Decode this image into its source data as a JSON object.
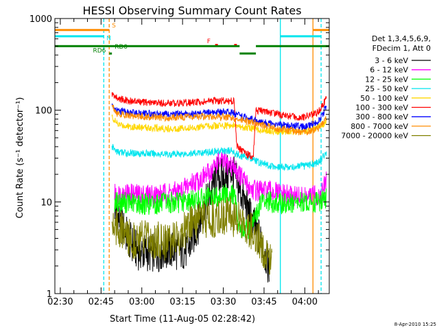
{
  "chart_data": {
    "type": "line",
    "title": "HESSI Observing Summary Count Rates",
    "xlabel": "Start Time (11-Aug-05 02:28:42)",
    "ylabel": "Count Rate (s⁻¹ detector⁻¹)",
    "y_scale": "log",
    "ylim": [
      1,
      1000
    ],
    "xlim": [
      "02:28",
      "04:09"
    ],
    "x_ticks": [
      "02:30",
      "02:45",
      "03:00",
      "03:15",
      "03:30",
      "03:45",
      "04:00"
    ],
    "y_ticks": [
      "1",
      "10",
      "100",
      "1000"
    ],
    "grid": false,
    "legend_position": "right",
    "legend_header": [
      "Det 1,3,4,5,6,9,",
      "FDecim 1, Att 0"
    ],
    "timestamp": "8-Apr-2010 15:25",
    "annotations": [
      {
        "label": "S",
        "color": "#ff8c00"
      },
      {
        "label": "N",
        "color": "#00e5ee"
      },
      {
        "label": "F",
        "color": "#ff0000"
      },
      {
        "label": "RD6",
        "color": "#008000"
      },
      {
        "label": "RD0",
        "color": "#008000"
      }
    ],
    "vertical_markers": [
      {
        "time": "02:46",
        "color": "#00e5ee",
        "style": "dashed"
      },
      {
        "time": "02:48",
        "color": "#ff8c00",
        "style": "dashed"
      },
      {
        "time": "03:51",
        "color": "#00e5ee",
        "style": "solid"
      },
      {
        "time": "04:03",
        "color": "#ff8c00",
        "style": "solid"
      },
      {
        "time": "04:06",
        "color": "#00e5ee",
        "style": "dashed"
      }
    ],
    "flag_bars": [
      {
        "name": "SAA",
        "color": "#ff8c00",
        "y": 750,
        "segments": [
          [
            "02:28",
            "02:48"
          ],
          [
            "04:03",
            "04:09"
          ]
        ]
      },
      {
        "name": "Night",
        "color": "#00e5ee",
        "y": 640,
        "segments": [
          [
            "02:28",
            "02:46"
          ],
          [
            "03:51",
            "04:06"
          ]
        ]
      },
      {
        "name": "Flare",
        "color": "#ff0000",
        "y": 515,
        "segments": [
          [
            "03:27",
            "03:28"
          ],
          [
            "03:34",
            "03:35"
          ]
        ]
      },
      {
        "name": "Decimation",
        "color": "#008000",
        "y": 500,
        "segments": [
          [
            "02:28",
            "03:36"
          ],
          [
            "03:42",
            "04:09"
          ]
        ]
      },
      {
        "name": "Decimation-low",
        "color": "#008000",
        "y": 415,
        "segments": [
          [
            "02:48",
            "02:49"
          ],
          [
            "03:36",
            "03:42"
          ]
        ]
      }
    ],
    "series": [
      {
        "name": "3 - 6 keV",
        "color": "#000000",
        "x": [
          "02:50",
          "02:52",
          "02:55",
          "02:58",
          "03:01",
          "03:05",
          "03:10",
          "03:14",
          "03:17",
          "03:20",
          "03:24",
          "03:28",
          "03:30",
          "03:33",
          "03:36",
          "03:39",
          "03:42",
          "03:45",
          "03:47"
        ],
        "y": [
          9,
          6,
          4,
          3,
          2.8,
          2.8,
          3,
          2.9,
          3,
          5,
          10,
          20,
          18,
          22,
          14,
          8,
          5,
          3,
          1.8
        ]
      },
      {
        "name": "6 - 12 keV",
        "color": "#ff00ff",
        "x": [
          "02:50",
          "02:54",
          "02:58",
          "03:02",
          "03:06",
          "03:10",
          "03:14",
          "03:18",
          "03:22",
          "03:26",
          "03:28",
          "03:31",
          "03:34",
          "03:37",
          "03:40",
          "03:44",
          "03:48",
          "03:52",
          "03:56",
          "04:00",
          "04:03",
          "04:06",
          "04:08"
        ],
        "y": [
          12,
          12.5,
          12,
          12,
          12,
          12.5,
          13,
          16,
          18,
          22,
          28,
          26,
          24,
          18,
          14,
          13,
          13,
          12,
          11.5,
          11,
          11.5,
          12,
          17
        ]
      },
      {
        "name": "12 - 25 keV",
        "color": "#00ff00",
        "x": [
          "02:50",
          "02:55",
          "03:00",
          "03:05",
          "03:10",
          "03:15",
          "03:20",
          "03:25",
          "03:30",
          "03:34",
          "03:36",
          "03:40",
          "03:42",
          "03:44",
          "03:47",
          "03:50",
          "03:55",
          "04:00",
          "04:05",
          "04:08"
        ],
        "y": [
          10,
          9.8,
          9.5,
          9.5,
          9.8,
          10,
          10.5,
          11,
          12,
          12,
          5,
          5,
          7,
          10,
          10,
          9.5,
          9.5,
          9.8,
          10,
          11
        ]
      },
      {
        "name": "25 - 50 keV",
        "color": "#00e5ee",
        "x": [
          "02:49",
          "02:51",
          "02:55",
          "03:00",
          "03:05",
          "03:10",
          "03:15",
          "03:20",
          "03:25",
          "03:30",
          "03:33",
          "03:36",
          "03:40",
          "03:43",
          "03:47",
          "03:50",
          "03:55",
          "04:00",
          "04:05",
          "04:08"
        ],
        "y": [
          40,
          35,
          34,
          34,
          33.5,
          33,
          33.5,
          34,
          35,
          36,
          36,
          32,
          30,
          27,
          25,
          24,
          24,
          24.5,
          27,
          35
        ]
      },
      {
        "name": "50 - 100 keV",
        "color": "#ffd700",
        "x": [
          "02:49",
          "02:51",
          "02:55",
          "03:00",
          "03:05",
          "03:10",
          "03:15",
          "03:20",
          "03:25",
          "03:30",
          "03:33",
          "03:36",
          "03:40",
          "03:43",
          "03:47",
          "03:50",
          "03:55",
          "04:00",
          "04:05",
          "04:08"
        ],
        "y": [
          85,
          70,
          67,
          65,
          64,
          63,
          64,
          65,
          67,
          68,
          68,
          66,
          64,
          62,
          60,
          58,
          58,
          60,
          65,
          75
        ]
      },
      {
        "name": "100 - 300 keV",
        "color": "#ff0000",
        "x": [
          "02:49",
          "02:51",
          "02:55",
          "03:00",
          "03:05",
          "03:10",
          "03:15",
          "03:20",
          "03:25",
          "03:30",
          "03:34",
          "03:35",
          "03:38",
          "03:41",
          "03:42",
          "03:45",
          "03:48",
          "03:51",
          "03:55",
          "04:00",
          "04:05",
          "04:08"
        ],
        "y": [
          150,
          135,
          127,
          122,
          120,
          119,
          120,
          122,
          125,
          127,
          126,
          40,
          34,
          30,
          100,
          97,
          93,
          90,
          85,
          84,
          95,
          135
        ]
      },
      {
        "name": "300 - 800 keV",
        "color": "#0000ff",
        "x": [
          "02:49",
          "02:51",
          "02:55",
          "03:00",
          "03:05",
          "03:10",
          "03:15",
          "03:20",
          "03:25",
          "03:30",
          "03:33",
          "03:36",
          "03:40",
          "03:43",
          "03:47",
          "03:50",
          "03:55",
          "04:00",
          "04:05",
          "04:08"
        ],
        "y": [
          110,
          98,
          94,
          92,
          91,
          90,
          91,
          92,
          94,
          96,
          95,
          86,
          80,
          75,
          72,
          70,
          67,
          66,
          75,
          110
        ]
      },
      {
        "name": "800 - 7000 keV",
        "color": "#ff8c00",
        "x": [
          "02:49",
          "02:51",
          "02:55",
          "03:00",
          "03:05",
          "03:10",
          "03:15",
          "03:20",
          "03:25",
          "03:30",
          "03:33",
          "03:36",
          "03:40",
          "03:43",
          "03:47",
          "03:50",
          "03:55",
          "04:00",
          "04:05",
          "04:08"
        ],
        "y": [
          115,
          92,
          88,
          85,
          84,
          83,
          84,
          85,
          85,
          84,
          82,
          78,
          74,
          70,
          66,
          63,
          60,
          57,
          63,
          80
        ]
      },
      {
        "name": "7000 - 20000 keV",
        "color": "#808000",
        "x": [
          "02:49",
          "02:52",
          "02:55",
          "03:00",
          "03:05",
          "03:10",
          "03:13",
          "03:16",
          "03:20",
          "03:25",
          "03:30",
          "03:33",
          "03:36",
          "03:39",
          "03:42",
          "03:45",
          "03:48"
        ],
        "y": [
          6,
          5,
          4,
          3.8,
          3.8,
          3.8,
          3.8,
          5,
          6,
          6.5,
          7,
          7,
          6.5,
          5.5,
          4,
          3,
          2.5
        ]
      }
    ]
  }
}
